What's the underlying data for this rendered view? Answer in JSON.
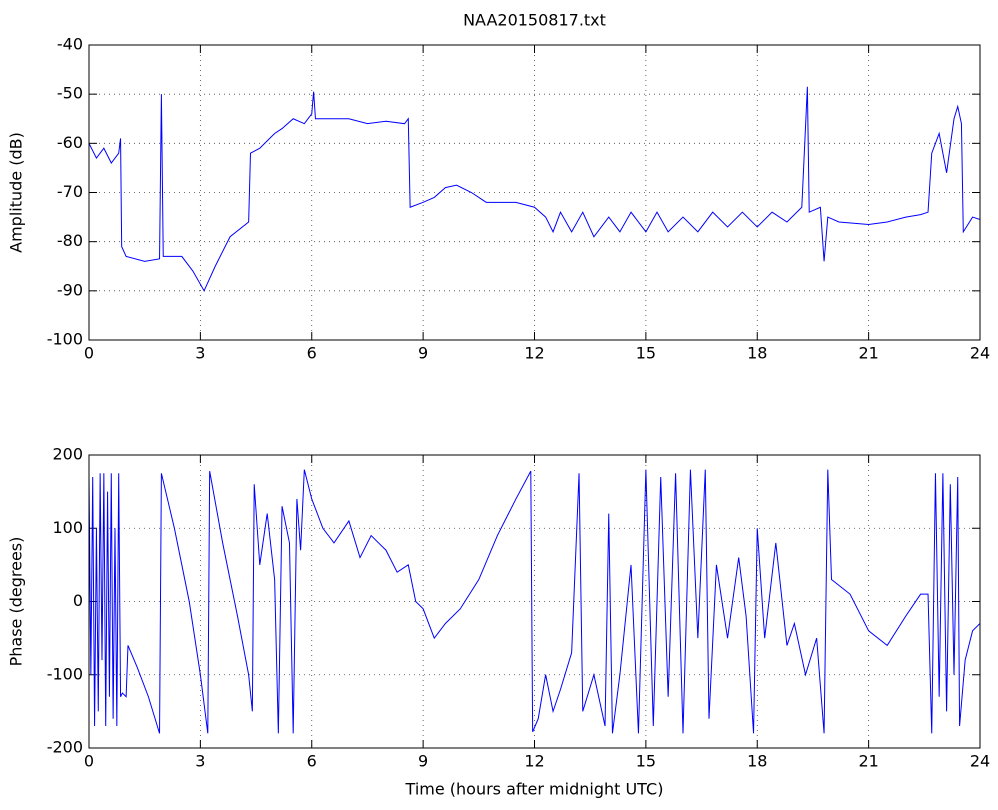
{
  "chart_data": [
    {
      "type": "line",
      "title": "NAA20150817.txt",
      "y_label": "Amplitude (dB)",
      "x": [
        0,
        0.2,
        0.4,
        0.6,
        0.8,
        0.85,
        0.88,
        1.0,
        1.5,
        1.9,
        1.95,
        2.0,
        2.5,
        2.8,
        3.1,
        3.4,
        3.8,
        4.3,
        4.35,
        4.6,
        5.0,
        5.2,
        5.5,
        5.8,
        6.0,
        6.05,
        6.1,
        6.5,
        7.0,
        7.5,
        8.0,
        8.5,
        8.6,
        8.65,
        9.0,
        9.3,
        9.6,
        9.9,
        10.3,
        10.7,
        11.5,
        12.0,
        12.3,
        12.5,
        12.7,
        13.0,
        13.3,
        13.6,
        14.0,
        14.3,
        14.6,
        15.0,
        15.3,
        15.6,
        16.0,
        16.4,
        16.8,
        17.2,
        17.6,
        18.0,
        18.4,
        18.8,
        19.2,
        19.35,
        19.4,
        19.7,
        19.8,
        19.9,
        20.2,
        21.0,
        21.5,
        22.0,
        22.4,
        22.6,
        22.7,
        22.9,
        23.1,
        23.3,
        23.4,
        23.5,
        23.55,
        23.8,
        24.0
      ],
      "series": [
        {
          "name": "Amplitude",
          "color": "#0000ff",
          "values": [
            -60,
            -63,
            -61,
            -64,
            -62,
            -59,
            -81,
            -83,
            -84,
            -83.5,
            -50,
            -83,
            -83,
            -86,
            -90,
            -85,
            -79,
            -76,
            -62,
            -61,
            -58,
            -57,
            -55,
            -56,
            -54,
            -49.5,
            -55,
            -55,
            -55,
            -56,
            -55.5,
            -56,
            -55,
            -73,
            -72,
            -71,
            -69,
            -68.5,
            -70,
            -72,
            -72,
            -73,
            -75,
            -78,
            -74,
            -78,
            -74,
            -79,
            -75,
            -78,
            -74,
            -78,
            -74,
            -78,
            -75,
            -78,
            -74,
            -77,
            -74,
            -77,
            -74,
            -76,
            -73,
            -48.5,
            -74,
            -73,
            -84,
            -75,
            -76,
            -76.5,
            -76,
            -75,
            -74.5,
            -74,
            -62,
            -58,
            -66,
            -55,
            -52.5,
            -56,
            -78,
            -75,
            -75.5
          ]
        }
      ],
      "xlim": [
        0,
        24
      ],
      "xticks": [
        0,
        3,
        6,
        9,
        12,
        15,
        18,
        21,
        24
      ],
      "ylim": [
        -100,
        -40
      ],
      "yticks": [
        -100,
        -90,
        -80,
        -70,
        -60,
        -50,
        -40
      ],
      "grid": true
    },
    {
      "type": "line",
      "y_label": "Phase (degrees)",
      "x_label": "Time (hours after midnight UTC)",
      "x": [
        0,
        0.05,
        0.1,
        0.15,
        0.2,
        0.25,
        0.3,
        0.35,
        0.4,
        0.45,
        0.5,
        0.55,
        0.6,
        0.65,
        0.7,
        0.75,
        0.8,
        0.85,
        0.9,
        1.0,
        1.05,
        1.3,
        1.6,
        1.9,
        1.95,
        2.3,
        2.7,
        3.0,
        3.2,
        3.25,
        3.6,
        4.0,
        4.3,
        4.4,
        4.45,
        4.6,
        4.8,
        5.0,
        5.1,
        5.2,
        5.4,
        5.5,
        5.6,
        5.7,
        5.8,
        6.0,
        6.3,
        6.6,
        7.0,
        7.3,
        7.6,
        8.0,
        8.3,
        8.6,
        8.8,
        9.0,
        9.3,
        9.6,
        10.0,
        10.5,
        11.0,
        11.5,
        11.9,
        11.95,
        12.1,
        12.3,
        12.5,
        12.7,
        13.0,
        13.2,
        13.3,
        13.6,
        13.9,
        14.0,
        14.1,
        14.3,
        14.6,
        14.8,
        15.0,
        15.2,
        15.4,
        15.6,
        15.8,
        16.0,
        16.2,
        16.4,
        16.6,
        16.7,
        16.9,
        17.2,
        17.5,
        17.7,
        17.9,
        18.0,
        18.2,
        18.5,
        18.8,
        19.0,
        19.3,
        19.6,
        19.8,
        19.9,
        20.0,
        20.5,
        21.0,
        21.5,
        22.0,
        22.4,
        22.6,
        22.7,
        22.8,
        22.9,
        23.0,
        23.1,
        23.2,
        23.3,
        23.4,
        23.45,
        23.6,
        23.8,
        24.0
      ],
      "series": [
        {
          "name": "Phase",
          "color": "#0000ff",
          "values": [
            170,
            -100,
            170,
            -170,
            100,
            -150,
            175,
            -80,
            175,
            -170,
            150,
            -130,
            175,
            -160,
            100,
            -170,
            175,
            -130,
            -125,
            -130,
            -60,
            -90,
            -130,
            -180,
            175,
            100,
            0,
            -100,
            -180,
            178,
            80,
            -20,
            -100,
            -150,
            160,
            50,
            120,
            30,
            -180,
            130,
            80,
            -180,
            140,
            70,
            180,
            140,
            100,
            80,
            110,
            60,
            90,
            70,
            40,
            50,
            0,
            -10,
            -50,
            -30,
            -10,
            30,
            90,
            140,
            178,
            -178,
            -160,
            -100,
            -150,
            -120,
            -70,
            175,
            -150,
            -100,
            -170,
            120,
            -180,
            -100,
            50,
            -180,
            180,
            -170,
            170,
            -130,
            175,
            -180,
            180,
            -50,
            180,
            -160,
            50,
            -50,
            60,
            -20,
            -180,
            100,
            -50,
            80,
            -60,
            -30,
            -100,
            -50,
            -180,
            180,
            30,
            10,
            -40,
            -60,
            -20,
            10,
            10,
            -180,
            175,
            -130,
            175,
            -150,
            160,
            -100,
            170,
            -170,
            -80,
            -40,
            -30
          ]
        }
      ],
      "xlim": [
        0,
        24
      ],
      "xticks": [
        0,
        3,
        6,
        9,
        12,
        15,
        18,
        21,
        24
      ],
      "ylim": [
        -200,
        200
      ],
      "yticks": [
        -200,
        -100,
        0,
        100,
        200
      ],
      "grid": true
    }
  ]
}
